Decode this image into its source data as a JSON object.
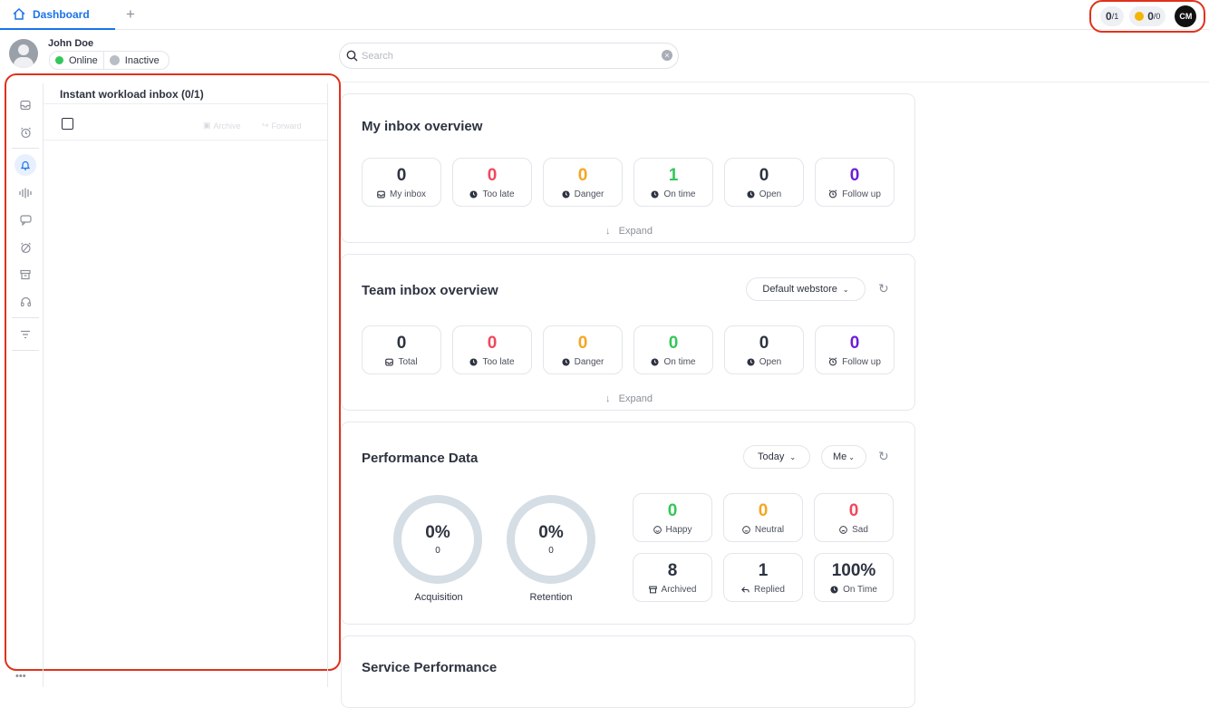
{
  "tabs": {
    "active_label": "Dashboard",
    "add_label": "+"
  },
  "counters": {
    "inbox": "0",
    "inbox_total": "/1",
    "coins": "0",
    "coins_total": "/0",
    "logo": "CM"
  },
  "user": {
    "name": "John Doe",
    "online_label": "Online",
    "inactive_label": "Inactive",
    "online_color": "#34c759",
    "inactive_color": "#b9bec6"
  },
  "search": {
    "placeholder": "Search",
    "value": ""
  },
  "sidebar": {
    "items": [
      "inbox-icon",
      "alarm-icon",
      "bell-icon",
      "audio-wave-icon",
      "chat-icon",
      "snooze-icon",
      "archive-icon",
      "support-icon",
      "filter-icon"
    ]
  },
  "inbox_panel": {
    "title": "Instant workload inbox (0/1)",
    "archive_label": "Archive",
    "forward_label": "Forward"
  },
  "my_inbox": {
    "title": "My inbox overview",
    "expand_label": "Expand",
    "stats": [
      {
        "value": "0",
        "label": "My inbox",
        "color": "#2d3340",
        "icon": "inbox-icon"
      },
      {
        "value": "0",
        "label": "Too late",
        "color": "#f0485c",
        "icon": "clock-icon"
      },
      {
        "value": "0",
        "label": "Danger",
        "color": "#f5a623",
        "icon": "clock-icon"
      },
      {
        "value": "1",
        "label": "On time",
        "color": "#34c759",
        "icon": "clock-icon"
      },
      {
        "value": "0",
        "label": "Open",
        "color": "#2d3340",
        "icon": "clock-icon"
      },
      {
        "value": "0",
        "label": "Follow up",
        "color": "#6b1fd6",
        "icon": "alarm-icon"
      }
    ]
  },
  "team_inbox": {
    "title": "Team inbox overview",
    "dropdown_label": "Default webstore",
    "expand_label": "Expand",
    "stats": [
      {
        "value": "0",
        "label": "Total",
        "color": "#2d3340",
        "icon": "inbox-icon"
      },
      {
        "value": "0",
        "label": "Too late",
        "color": "#f0485c",
        "icon": "clock-icon"
      },
      {
        "value": "0",
        "label": "Danger",
        "color": "#f5a623",
        "icon": "clock-icon"
      },
      {
        "value": "0",
        "label": "On time",
        "color": "#34c759",
        "icon": "clock-icon"
      },
      {
        "value": "0",
        "label": "Open",
        "color": "#2d3340",
        "icon": "clock-icon"
      },
      {
        "value": "0",
        "label": "Follow up",
        "color": "#6b1fd6",
        "icon": "alarm-icon"
      }
    ]
  },
  "performance": {
    "title": "Performance Data",
    "period_label": "Today",
    "owner_label": "Me",
    "rings": [
      {
        "percent": "0%",
        "count": "0",
        "label": "Acquisition"
      },
      {
        "percent": "0%",
        "count": "0",
        "label": "Retention"
      }
    ],
    "stats": [
      {
        "value": "0",
        "label": "Happy",
        "color": "#34c759",
        "icon": "smile-icon"
      },
      {
        "value": "0",
        "label": "Neutral",
        "color": "#f5a623",
        "icon": "neutral-face-icon"
      },
      {
        "value": "0",
        "label": "Sad",
        "color": "#f0485c",
        "icon": "sad-face-icon"
      },
      {
        "value": "8",
        "label": "Archived",
        "color": "#2d3340",
        "icon": "archive-icon"
      },
      {
        "value": "1",
        "label": "Replied",
        "color": "#2d3340",
        "icon": "reply-icon"
      },
      {
        "value": "100%",
        "label": "On Time",
        "color": "#2d3340",
        "icon": "clock-icon"
      }
    ]
  },
  "service": {
    "title": "Service Performance"
  }
}
